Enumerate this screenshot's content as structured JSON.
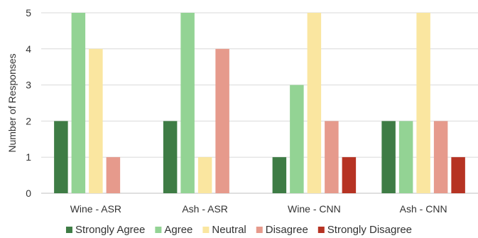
{
  "chart_data": {
    "type": "bar",
    "title": "",
    "xlabel": "",
    "ylabel": "Number of Responses",
    "ylim": [
      0,
      5
    ],
    "yticks": [
      0,
      1,
      2,
      3,
      4,
      5
    ],
    "grid": true,
    "legend_position": "bottom",
    "categories": [
      "Wine - ASR",
      "Ash - ASR",
      "Wine - CNN",
      "Ash - CNN"
    ],
    "series": [
      {
        "name": "Strongly Agree",
        "color": "#3e7c45",
        "values": [
          2,
          2,
          1,
          2
        ]
      },
      {
        "name": "Agree",
        "color": "#93d394",
        "values": [
          5,
          5,
          3,
          2
        ]
      },
      {
        "name": "Neutral",
        "color": "#fae6a0",
        "values": [
          4,
          1,
          5,
          5
        ]
      },
      {
        "name": "Disagree",
        "color": "#e69a8c",
        "values": [
          1,
          4,
          2,
          2
        ]
      },
      {
        "name": "Strongly Disagree",
        "color": "#b63323",
        "values": [
          0,
          0,
          1,
          1
        ]
      }
    ]
  }
}
